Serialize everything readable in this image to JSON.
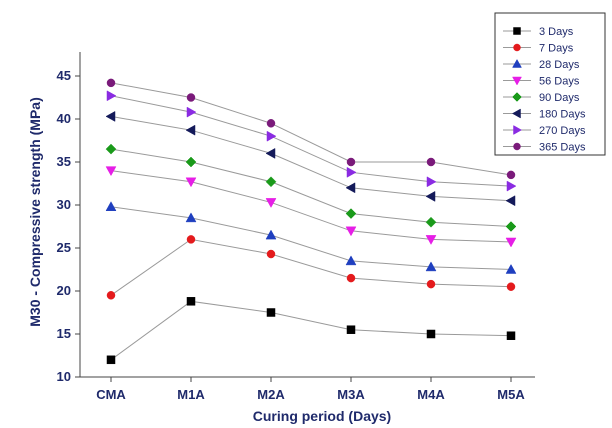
{
  "chart_data": {
    "type": "line",
    "title": "",
    "xlabel": "Curing period (Days)",
    "ylabel": "M30 - Compressive strength (MPa)",
    "categories": [
      "CMA",
      "M1A",
      "M2A",
      "M3A",
      "M4A",
      "M5A"
    ],
    "ylim": [
      10,
      47.5
    ],
    "yticks": [
      10,
      15,
      20,
      25,
      30,
      35,
      40,
      45
    ],
    "grid": false,
    "legend_position": "top-right",
    "series": [
      {
        "name": "3 Days",
        "color": "#000000",
        "marker": "square",
        "values": [
          12.0,
          18.8,
          17.5,
          15.5,
          15.0,
          14.8
        ]
      },
      {
        "name": "7 Days",
        "color": "#e41a1c",
        "marker": "circle",
        "values": [
          19.5,
          26.0,
          24.3,
          21.5,
          20.8,
          20.5
        ]
      },
      {
        "name": "28 Days",
        "color": "#1f3fbf",
        "marker": "triangle-up",
        "values": [
          29.8,
          28.5,
          26.5,
          23.5,
          22.8,
          22.5
        ]
      },
      {
        "name": "56 Days",
        "color": "#e61ee6",
        "marker": "triangle-down",
        "values": [
          34.0,
          32.7,
          30.3,
          27.0,
          26.0,
          25.7
        ]
      },
      {
        "name": "90 Days",
        "color": "#1a9a1a",
        "marker": "diamond",
        "values": [
          36.5,
          35.0,
          32.7,
          29.0,
          28.0,
          27.5
        ]
      },
      {
        "name": "180 Days",
        "color": "#141a5a",
        "marker": "triangle-left",
        "values": [
          40.3,
          38.7,
          36.0,
          32.0,
          31.0,
          30.5
        ]
      },
      {
        "name": "270 Days",
        "color": "#8a2be2",
        "marker": "triangle-right",
        "values": [
          42.7,
          40.8,
          38.0,
          33.8,
          32.7,
          32.2
        ]
      },
      {
        "name": "365 Days",
        "color": "#7a1a7a",
        "marker": "circle",
        "values": [
          44.2,
          42.5,
          39.5,
          35.0,
          35.0,
          33.5
        ]
      }
    ]
  }
}
